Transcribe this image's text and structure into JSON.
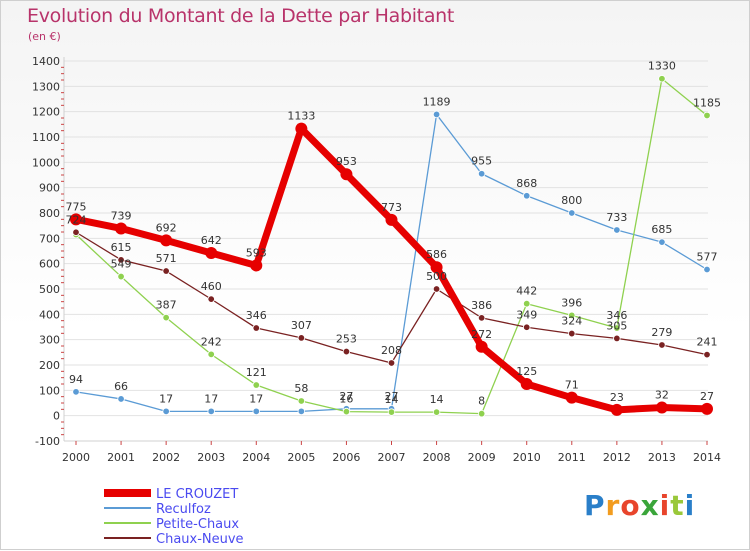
{
  "chart_data": {
    "type": "line",
    "title": "Evolution du Montant de la Dette par Habitant",
    "subtitle": "(en €)",
    "x": [
      "2000",
      "2001",
      "2002",
      "2003",
      "2004",
      "2005",
      "2006",
      "2007",
      "2008",
      "2009",
      "2010",
      "2011",
      "2012",
      "2013",
      "2014"
    ],
    "ylim": [
      -100,
      1400
    ],
    "yticks": [
      -100,
      0,
      100,
      200,
      300,
      400,
      500,
      600,
      700,
      800,
      900,
      1000,
      1100,
      1200,
      1300,
      1400
    ],
    "grid": true,
    "legend_position": "bottom-left",
    "series": [
      {
        "name": "LE CROUZET",
        "color": "#e60000",
        "values": [
          775,
          739,
          692,
          642,
          593,
          1133,
          953,
          773,
          586,
          272,
          125,
          71,
          23,
          32,
          27
        ]
      },
      {
        "name": "Reculfoz",
        "color": "#5b9bd5",
        "values": [
          94,
          66,
          17,
          17,
          17,
          17,
          27,
          27,
          1189,
          955,
          868,
          800,
          733,
          685,
          577
        ]
      },
      {
        "name": "Petite-Chaux",
        "color": "#8fd14f",
        "values": [
          715,
          549,
          387,
          242,
          121,
          58,
          16,
          14,
          14,
          8,
          442,
          396,
          346,
          null,
          1185
        ],
        "values_full": [
          715,
          549,
          387,
          242,
          121,
          58,
          16,
          14,
          14,
          8,
          442,
          396,
          346,
          1330,
          1185
        ]
      },
      {
        "name": "Chaux-Neuve",
        "color": "#7a2222",
        "values": [
          724,
          615,
          571,
          460,
          346,
          307,
          253,
          208,
          500,
          386,
          349,
          324,
          305,
          279,
          241
        ]
      }
    ],
    "labels": {
      "LE CROUZET": [
        "775",
        "739",
        "692",
        "642",
        "593",
        "1133",
        "953",
        "773",
        "586",
        "272",
        "125",
        "71",
        "23",
        "32",
        "27"
      ],
      "Reculfoz": [
        "94",
        "66",
        "17",
        "17",
        "17",
        "",
        "27",
        "27",
        "1189",
        "955",
        "868",
        "800",
        "733",
        "685",
        "577"
      ],
      "Petite-Chaux": [
        "",
        "549",
        "387",
        "242",
        "121",
        "58",
        "16",
        "14",
        "14",
        "8",
        "442",
        "396",
        "346",
        "1330",
        "1185"
      ],
      "Chaux-Neuve": [
        "724",
        "615",
        "571",
        "460",
        "346",
        "307",
        "253",
        "208",
        "500",
        "386",
        "349",
        "324",
        "305",
        "279",
        "241"
      ]
    }
  },
  "logo": {
    "letters": [
      "P",
      "r",
      "o",
      "x",
      "i",
      "t",
      "i"
    ]
  }
}
